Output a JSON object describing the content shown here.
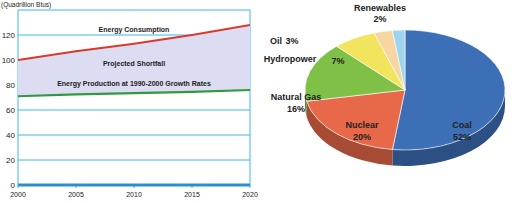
{
  "chart_data": [
    {
      "type": "line",
      "y_label": "(Quadrillion Btus)",
      "x": [
        2000,
        2005,
        2010,
        2015,
        2020
      ],
      "series": [
        {
          "name": "Energy Consumption",
          "color": "#d93a2b",
          "values": [
            100,
            107,
            113,
            120,
            128
          ]
        },
        {
          "name": "Energy Production at 1990-2000 Growth Rates",
          "color": "#2f9a3e",
          "values": [
            71,
            72.5,
            73.5,
            74.5,
            76
          ]
        }
      ],
      "annotations": [
        "Projected Shortfall"
      ],
      "xlim": [
        2000,
        2020
      ],
      "xticks": [
        2000,
        2005,
        2010,
        2015,
        2020
      ],
      "ylim": [
        0,
        140
      ],
      "yticks": [
        0,
        20,
        40,
        60,
        80,
        100,
        120
      ],
      "grid": true
    },
    {
      "type": "pie",
      "categories": [
        "Coal",
        "Nuclear",
        "Natural Gas",
        "Hydropower",
        "Oil",
        "Renewables"
      ],
      "values": [
        52,
        20,
        16,
        7,
        3,
        2
      ],
      "value_labels": [
        "52%",
        "20%",
        "16%",
        "7%",
        "3%",
        "2%"
      ],
      "colors": [
        "#3d6fb6",
        "#e8684a",
        "#7fc047",
        "#f3e45e",
        "#f6d7a2",
        "#9fd4ee"
      ]
    }
  ]
}
